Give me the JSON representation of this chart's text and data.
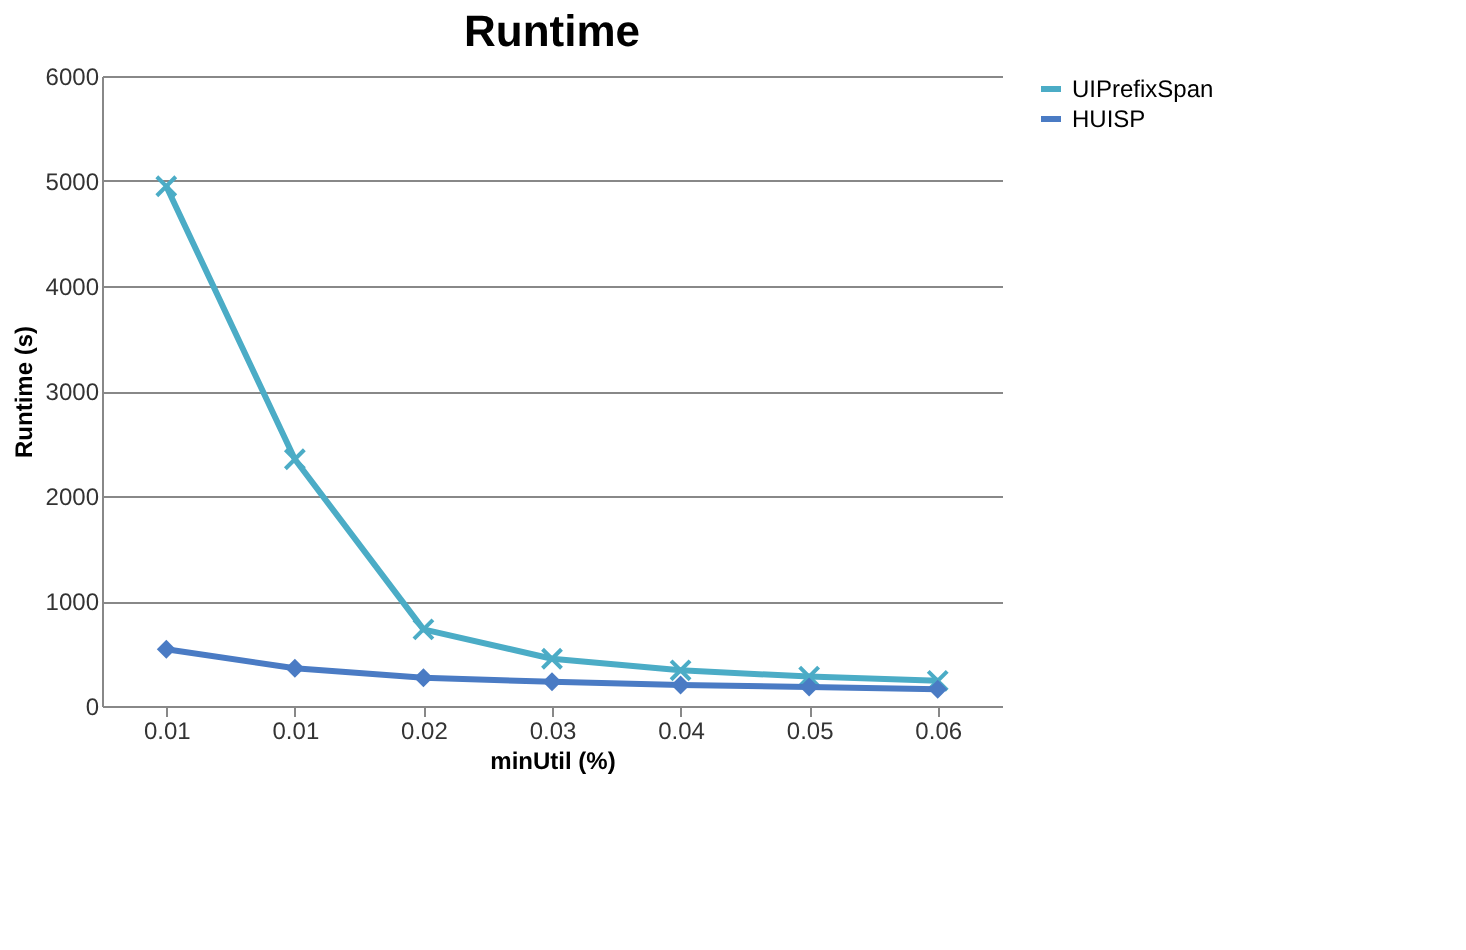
{
  "chart_data": {
    "type": "line",
    "title": "Runtime",
    "xlabel": "minUtil (%)",
    "ylabel": "Runtime (s)",
    "categories": [
      "0.01",
      "0.01",
      "0.02",
      "0.03",
      "0.04",
      "0.05",
      "0.06"
    ],
    "series": [
      {
        "name": "UIPrefixSpan",
        "color": "#4bacc6",
        "marker": "cross",
        "values": [
          4950,
          2350,
          730,
          450,
          340,
          280,
          240
        ]
      },
      {
        "name": "HUISP",
        "color": "#4a7bc4",
        "marker": "diamond",
        "values": [
          540,
          360,
          270,
          230,
          200,
          180,
          160
        ]
      }
    ],
    "ylim": [
      0,
      6000
    ],
    "yticks": [
      0,
      1000,
      2000,
      3000,
      4000,
      5000,
      6000
    ],
    "grid": "y",
    "legend": "right",
    "line_style": "solid"
  }
}
